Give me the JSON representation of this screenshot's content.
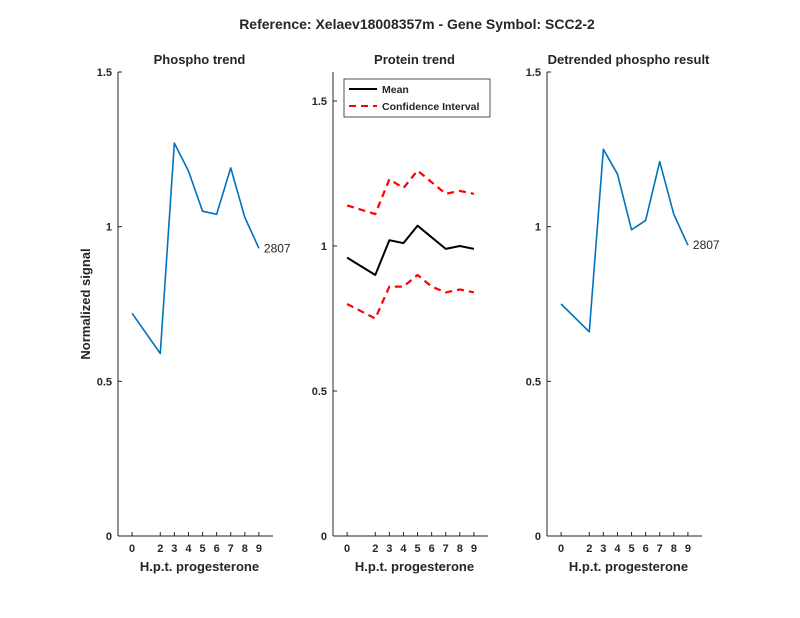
{
  "figure_title": "Reference:  Xelaev18008357m - Gene Symbol:  SCC2-2",
  "colors": {
    "series_blue": "#0072BD",
    "mean_black": "#000000",
    "ci_red": "#FF0000",
    "axis": "#262626"
  },
  "chart_data": [
    {
      "type": "line",
      "title": "Phospho trend",
      "xlabel": "H.p.t. progesterone",
      "ylabel": "Normalized signal",
      "x": [
        0,
        2,
        3,
        4,
        5,
        6,
        7,
        8,
        9
      ],
      "xticks": [
        "0",
        "2",
        "3",
        "4",
        "5",
        "6",
        "7",
        "8",
        "9"
      ],
      "ylim": [
        0,
        1.5
      ],
      "yticks": [
        "0",
        "0.5",
        "1",
        "1.5"
      ],
      "series": [
        {
          "values": [
            0.72,
            0.59,
            1.27,
            1.18,
            1.05,
            1.04,
            1.19,
            1.03,
            0.93
          ],
          "color": "#0072BD",
          "style": "solid"
        }
      ],
      "annotations": [
        {
          "text": "2807"
        }
      ],
      "grid": false
    },
    {
      "type": "line",
      "title": "Protein trend",
      "xlabel": "H.p.t. progesterone",
      "ylabel": "",
      "x": [
        0,
        2,
        3,
        4,
        5,
        6,
        7,
        8,
        9
      ],
      "xticks": [
        "0",
        "2",
        "3",
        "4",
        "5",
        "6",
        "7",
        "8",
        "9"
      ],
      "ylim": [
        0,
        1.6
      ],
      "yticks": [
        "0",
        "0.5",
        "1",
        "1.5"
      ],
      "series": [
        {
          "name": "Mean",
          "values": [
            0.96,
            0.9,
            1.02,
            1.01,
            1.07,
            1.03,
            0.99,
            1.0,
            0.99
          ],
          "color": "#000000",
          "style": "solid"
        },
        {
          "name": "Confidence Interval",
          "values": [
            1.14,
            1.11,
            1.23,
            1.2,
            1.26,
            1.22,
            1.18,
            1.19,
            1.18
          ],
          "color": "#FF0000",
          "style": "dashed"
        },
        {
          "name": "",
          "values": [
            0.8,
            0.75,
            0.86,
            0.86,
            0.9,
            0.86,
            0.84,
            0.85,
            0.84
          ],
          "color": "#FF0000",
          "style": "dashed"
        }
      ],
      "legend": {
        "placement": "top-left",
        "entries": [
          "Mean",
          "Confidence Interval"
        ]
      },
      "grid": false
    },
    {
      "type": "line",
      "title": "Detrended phospho result",
      "xlabel": "H.p.t. progesterone",
      "ylabel": "",
      "x": [
        0,
        2,
        3,
        4,
        5,
        6,
        7,
        8,
        9
      ],
      "xticks": [
        "0",
        "2",
        "3",
        "4",
        "5",
        "6",
        "7",
        "8",
        "9"
      ],
      "ylim": [
        0,
        1.5
      ],
      "yticks": [
        "0",
        "0.5",
        "1",
        "1.5"
      ],
      "series": [
        {
          "values": [
            0.75,
            0.66,
            1.25,
            1.17,
            0.99,
            1.02,
            1.21,
            1.04,
            0.94
          ],
          "color": "#0072BD",
          "style": "solid"
        }
      ],
      "annotations": [
        {
          "text": "2807"
        }
      ],
      "grid": false
    }
  ]
}
